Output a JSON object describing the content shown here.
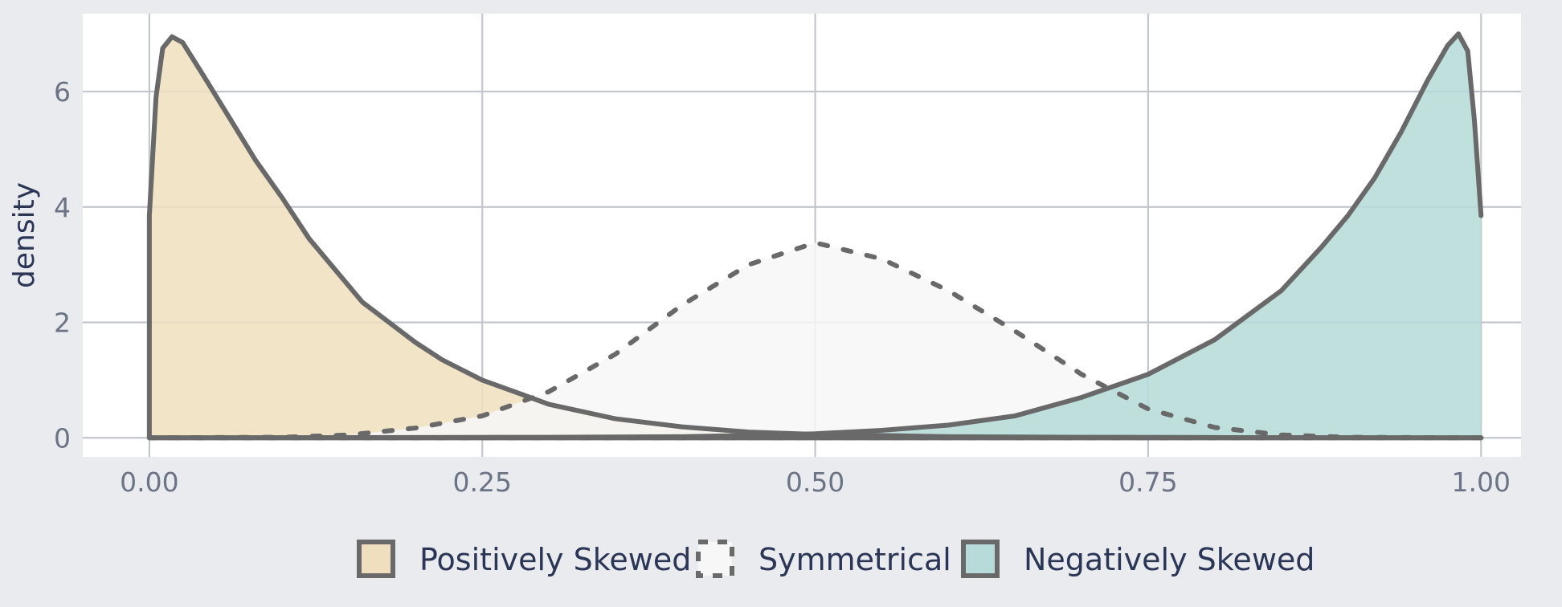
{
  "chart_data": {
    "type": "area",
    "title": "",
    "xlabel": "",
    "ylabel": "density",
    "xlim": [
      -0.05,
      1.03
    ],
    "ylim": [
      -0.33,
      7.35
    ],
    "xticks": [
      0.0,
      0.25,
      0.5,
      0.75,
      1.0
    ],
    "xtick_labels": [
      "0.00",
      "0.25",
      "0.50",
      "0.75",
      "1.00"
    ],
    "yticks": [
      0,
      2,
      4,
      6
    ],
    "ytick_labels": [
      "0",
      "2",
      "4",
      "6"
    ],
    "grid": true,
    "legend_position": "bottom",
    "series": [
      {
        "name": "Positively Skewed",
        "fill": "#efdfbe",
        "line": "#696969",
        "dash": "solid",
        "x": [
          0.0,
          0.005,
          0.01,
          0.017,
          0.025,
          0.04,
          0.06,
          0.08,
          0.1,
          0.12,
          0.14,
          0.16,
          0.18,
          0.2,
          0.22,
          0.25,
          0.28,
          0.3,
          0.35,
          0.4,
          0.45,
          0.5,
          0.55,
          0.6,
          0.7,
          0.8,
          0.9,
          1.0
        ],
        "y": [
          3.85,
          5.9,
          6.75,
          6.95,
          6.85,
          6.3,
          5.55,
          4.8,
          4.15,
          3.45,
          2.9,
          2.35,
          2.0,
          1.65,
          1.35,
          1.0,
          0.75,
          0.58,
          0.33,
          0.19,
          0.1,
          0.06,
          0.04,
          0.02,
          0.01,
          0.005,
          0.002,
          0.0
        ]
      },
      {
        "name": "Symmetrical",
        "fill": "#f7f7f7",
        "line": "#696969",
        "dash": "dashed",
        "x": [
          0.0,
          0.1,
          0.15,
          0.2,
          0.25,
          0.3,
          0.35,
          0.4,
          0.45,
          0.5,
          0.55,
          0.6,
          0.65,
          0.7,
          0.75,
          0.8,
          0.85,
          0.9,
          1.0
        ],
        "y": [
          0.0,
          0.01,
          0.05,
          0.17,
          0.38,
          0.8,
          1.45,
          2.3,
          3.0,
          3.38,
          3.1,
          2.55,
          1.85,
          1.1,
          0.5,
          0.18,
          0.05,
          0.01,
          0.0
        ]
      },
      {
        "name": "Negatively Skewed",
        "fill": "#b6dbd8",
        "line": "#696969",
        "dash": "solid",
        "x": [
          0.0,
          0.1,
          0.2,
          0.3,
          0.4,
          0.45,
          0.5,
          0.55,
          0.6,
          0.65,
          0.7,
          0.75,
          0.8,
          0.85,
          0.88,
          0.9,
          0.92,
          0.94,
          0.96,
          0.975,
          0.983,
          0.99,
          0.995,
          1.0
        ],
        "y": [
          0.0,
          0.002,
          0.005,
          0.01,
          0.02,
          0.04,
          0.07,
          0.13,
          0.22,
          0.38,
          0.7,
          1.1,
          1.7,
          2.55,
          3.3,
          3.85,
          4.5,
          5.3,
          6.2,
          6.8,
          7.0,
          6.7,
          5.5,
          3.85
        ]
      }
    ]
  }
}
